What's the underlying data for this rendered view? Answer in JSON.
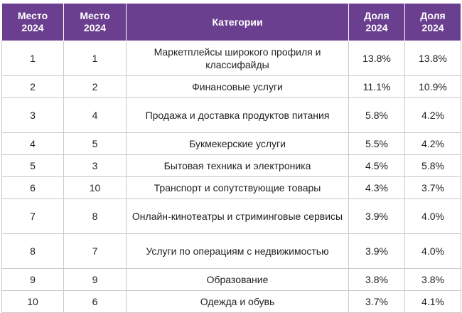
{
  "headers": [
    {
      "line1": "Место",
      "line2": "2024"
    },
    {
      "line1": "Место",
      "line2": "2024"
    },
    {
      "line1": "Категории",
      "line2": ""
    },
    {
      "line1": "Доля",
      "line2": "2024"
    },
    {
      "line1": "Доля",
      "line2": "2024"
    }
  ],
  "rows": [
    {
      "place_a": "1",
      "place_b": "1",
      "category": "Маркетплейсы широкого профиля и классифайды",
      "share_a": "13.8%",
      "share_b": "13.8%"
    },
    {
      "place_a": "2",
      "place_b": "2",
      "category": "Финансовые услуги",
      "share_a": "11.1%",
      "share_b": "10.9%"
    },
    {
      "place_a": "3",
      "place_b": "4",
      "category": "Продажа и доставка продуктов питания",
      "share_a": "5.8%",
      "share_b": "4.2%"
    },
    {
      "place_a": "4",
      "place_b": "5",
      "category": "Букмекерские услуги",
      "share_a": "5.5%",
      "share_b": "4.2%"
    },
    {
      "place_a": "5",
      "place_b": "3",
      "category": "Бытовая техника и электроника",
      "share_a": "4.5%",
      "share_b": "5.8%"
    },
    {
      "place_a": "6",
      "place_b": "10",
      "category": "Транспорт и сопутствующие товары",
      "share_a": "4.3%",
      "share_b": "3.7%"
    },
    {
      "place_a": "7",
      "place_b": "8",
      "category": "Онлайн-кинотеатры и стриминговые сервисы",
      "share_a": "3.9%",
      "share_b": "4.0%"
    },
    {
      "place_a": "8",
      "place_b": "7",
      "category": "Услуги по операциям с недвижимостью",
      "share_a": "3.9%",
      "share_b": "4.0%"
    },
    {
      "place_a": "9",
      "place_b": "9",
      "category": "Образование",
      "share_a": "3.8%",
      "share_b": "3.8%"
    },
    {
      "place_a": "10",
      "place_b": "6",
      "category": "Одежда и обувь",
      "share_a": "3.7%",
      "share_b": "4.1%"
    }
  ],
  "colors": {
    "header_bg": "#6b3f8f",
    "header_text": "#ffffff",
    "border": "#c9c9c9"
  }
}
